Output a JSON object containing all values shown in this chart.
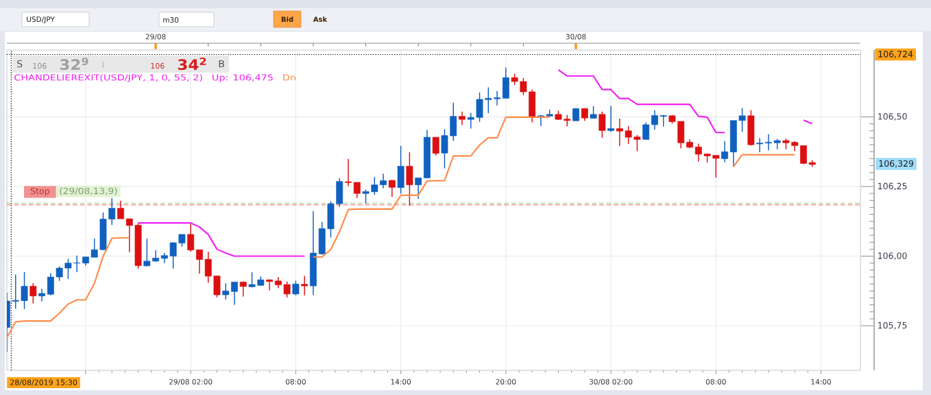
{
  "chart_data": {
    "type": "candlestick",
    "x": [
      "2019-08-28T15:30",
      "2019-08-28T16:00",
      "2019-08-28T16:30",
      "2019-08-28T17:00",
      "2019-08-28T17:30",
      "2019-08-28T18:00",
      "2019-08-28T18:30",
      "2019-08-28T19:00",
      "2019-08-28T19:30",
      "2019-08-28T20:00",
      "2019-08-28T20:30",
      "2019-08-28T21:00",
      "2019-08-28T21:30",
      "2019-08-28T22:00",
      "2019-08-28T22:30",
      "2019-08-28T23:00",
      "2019-08-28T23:30",
      "2019-08-29T00:00",
      "2019-08-29T00:30",
      "2019-08-29T01:00",
      "2019-08-29T01:30",
      "2019-08-29T02:00",
      "2019-08-29T02:30",
      "2019-08-29T03:00",
      "2019-08-29T03:30",
      "2019-08-29T04:00",
      "2019-08-29T04:30",
      "2019-08-29T05:00",
      "2019-08-29T05:30",
      "2019-08-29T06:00",
      "2019-08-29T06:30",
      "2019-08-29T07:00",
      "2019-08-29T07:30",
      "2019-08-29T08:00",
      "2019-08-29T08:30",
      "2019-08-29T09:00",
      "2019-08-29T09:30",
      "2019-08-29T10:00",
      "2019-08-29T10:30",
      "2019-08-29T11:00",
      "2019-08-29T11:30",
      "2019-08-29T12:00",
      "2019-08-29T12:30",
      "2019-08-29T13:00",
      "2019-08-29T13:30",
      "2019-08-29T14:00",
      "2019-08-29T14:30",
      "2019-08-29T15:00",
      "2019-08-29T15:30",
      "2019-08-29T16:00",
      "2019-08-29T16:30",
      "2019-08-29T17:00",
      "2019-08-29T17:30",
      "2019-08-29T18:00",
      "2019-08-29T18:30",
      "2019-08-29T19:00",
      "2019-08-29T19:30",
      "2019-08-29T20:00",
      "2019-08-29T20:30",
      "2019-08-29T21:00",
      "2019-08-29T21:30",
      "2019-08-29T22:00",
      "2019-08-29T22:30",
      "2019-08-29T23:00",
      "2019-08-29T23:30",
      "2019-08-30T00:00",
      "2019-08-30T00:30",
      "2019-08-30T01:00",
      "2019-08-30T01:30",
      "2019-08-30T02:00",
      "2019-08-30T02:30",
      "2019-08-30T03:00",
      "2019-08-30T03:30",
      "2019-08-30T04:00",
      "2019-08-30T04:30",
      "2019-08-30T05:00",
      "2019-08-30T05:30",
      "2019-08-30T06:00",
      "2019-08-30T06:30",
      "2019-08-30T07:00",
      "2019-08-30T07:30",
      "2019-08-30T08:00",
      "2019-08-30T08:30",
      "2019-08-30T09:00",
      "2019-08-30T09:30",
      "2019-08-30T10:00",
      "2019-08-30T10:30",
      "2019-08-30T11:00",
      "2019-08-30T11:30",
      "2019-08-30T12:00",
      "2019-08-30T12:30",
      "2019-08-30T13:00",
      "2019-08-30T13:30"
    ],
    "xlim": [
      "2019-08-28T15:30",
      "2019-08-30T16:15"
    ],
    "xticks": [
      {
        "value": "2019-08-28T20:00",
        "label": null
      },
      {
        "value": "2019-08-29T02:00",
        "label": "29/08 02:00"
      },
      {
        "value": "2019-08-29T08:00",
        "label": "08:00"
      },
      {
        "value": "2019-08-29T14:00",
        "label": "14:00"
      },
      {
        "value": "2019-08-29T20:00",
        "label": "20:00"
      },
      {
        "value": "2019-08-30T02:00",
        "label": "30/08 02:00"
      },
      {
        "value": "2019-08-30T08:00",
        "label": "08:00"
      },
      {
        "value": "2019-08-30T14:00",
        "label": "14:00"
      }
    ],
    "x2lim": [
      "2019-08-28T15:30",
      "2019-08-30T16:15"
    ],
    "x2ticks": [
      {
        "value": "2019-08-29T00:00",
        "label": "29/08"
      },
      {
        "value": "2019-08-30T00:00",
        "label": "30/08"
      }
    ],
    "ylim": [
      105.59,
      106.74
    ],
    "yticks": [
      {
        "value": 105.75,
        "label": "105,75"
      },
      {
        "value": 106.0,
        "label": "106,00"
      },
      {
        "value": 106.25,
        "label": "106,25"
      },
      {
        "value": 106.5,
        "label": "106,50"
      }
    ],
    "grid": true,
    "legend": "top left",
    "legend_title": "CHANDELIEREXIT(USD/JPY, 1, 0, 55, 2)",
    "series": [
      {
        "ohlc": [
          [
            105.744,
            105.869,
            105.656,
            105.839
          ],
          [
            105.838,
            105.934,
            105.811,
            105.841
          ],
          [
            105.84,
            105.943,
            105.81,
            105.892
          ],
          [
            105.892,
            105.903,
            105.83,
            105.857
          ],
          [
            105.857,
            105.883,
            105.838,
            105.866
          ],
          [
            105.863,
            105.939,
            105.859,
            105.925
          ],
          [
            105.925,
            105.963,
            105.911,
            105.957
          ],
          [
            105.957,
            105.99,
            105.918,
            105.975
          ],
          [
            105.975,
            106.002,
            105.943,
            105.976
          ],
          [
            105.975,
            105.997,
            105.966,
            105.997
          ],
          [
            105.996,
            106.063,
            105.996,
            106.023
          ],
          [
            106.023,
            106.157,
            106.023,
            106.133
          ],
          [
            106.133,
            106.209,
            106.112,
            106.172
          ],
          [
            106.172,
            106.199,
            106.134,
            106.134
          ],
          [
            106.134,
            106.134,
            106.014,
            106.11
          ],
          [
            106.111,
            106.119,
            105.955,
            105.966
          ],
          [
            105.965,
            106.063,
            105.963,
            105.982
          ],
          [
            105.982,
            106.021,
            105.98,
            105.993
          ],
          [
            105.992,
            106.012,
            105.975,
            106.002
          ],
          [
            106.0,
            106.05,
            105.955,
            106.048
          ],
          [
            106.047,
            106.078,
            106.034,
            106.078
          ],
          [
            106.078,
            106.116,
            106.016,
            106.022
          ],
          [
            106.023,
            106.023,
            105.937,
            105.988
          ],
          [
            105.989,
            106.016,
            105.904,
            105.928
          ],
          [
            105.929,
            105.929,
            105.852,
            105.861
          ],
          [
            105.861,
            105.902,
            105.844,
            105.875
          ],
          [
            105.873,
            105.907,
            105.825,
            105.907
          ],
          [
            105.907,
            105.909,
            105.855,
            105.891
          ],
          [
            105.89,
            105.942,
            105.888,
            105.898
          ],
          [
            105.895,
            105.927,
            105.893,
            105.915
          ],
          [
            105.915,
            105.916,
            105.877,
            105.909
          ],
          [
            105.911,
            105.925,
            105.885,
            105.897
          ],
          [
            105.898,
            105.909,
            105.852,
            105.864
          ],
          [
            105.864,
            105.912,
            105.859,
            105.9
          ],
          [
            105.899,
            105.929,
            105.859,
            105.893
          ],
          [
            105.893,
            106.162,
            105.86,
            106.011
          ],
          [
            106.008,
            106.123,
            106.005,
            106.099
          ],
          [
            106.098,
            106.197,
            106.067,
            106.188
          ],
          [
            106.188,
            106.28,
            106.177,
            106.268
          ],
          [
            106.267,
            106.349,
            106.252,
            106.264
          ],
          [
            106.265,
            106.265,
            106.209,
            106.225
          ],
          [
            106.225,
            106.239,
            106.189,
            106.232
          ],
          [
            106.231,
            106.284,
            106.22,
            106.256
          ],
          [
            106.256,
            106.296,
            106.244,
            106.271
          ],
          [
            106.272,
            106.274,
            106.213,
            106.247
          ],
          [
            106.246,
            106.396,
            106.224,
            106.323
          ],
          [
            106.323,
            106.373,
            106.181,
            106.256
          ],
          [
            106.256,
            106.281,
            106.205,
            106.281
          ],
          [
            106.281,
            106.453,
            106.281,
            106.427
          ],
          [
            106.427,
            106.427,
            106.361,
            106.369
          ],
          [
            106.37,
            106.456,
            106.315,
            106.433
          ],
          [
            106.432,
            106.551,
            106.414,
            106.502
          ],
          [
            106.502,
            106.519,
            106.471,
            106.491
          ],
          [
            106.491,
            106.514,
            106.458,
            106.498
          ],
          [
            106.498,
            106.588,
            106.482,
            106.563
          ],
          [
            106.562,
            106.606,
            106.513,
            106.567
          ],
          [
            106.565,
            106.593,
            106.541,
            106.569
          ],
          [
            106.567,
            106.677,
            106.567,
            106.641
          ],
          [
            106.641,
            106.655,
            106.615,
            106.627
          ],
          [
            106.627,
            106.64,
            106.578,
            106.59
          ],
          [
            106.59,
            106.598,
            106.481,
            106.5
          ],
          [
            106.502,
            106.507,
            106.467,
            106.504
          ],
          [
            106.503,
            106.526,
            106.502,
            106.509
          ],
          [
            106.509,
            106.522,
            106.489,
            106.491
          ],
          [
            106.492,
            106.507,
            106.466,
            106.487
          ],
          [
            106.486,
            106.531,
            106.486,
            106.53
          ],
          [
            106.53,
            106.531,
            106.486,
            106.496
          ],
          [
            106.495,
            106.539,
            106.495,
            106.509
          ],
          [
            106.509,
            106.519,
            106.425,
            106.451
          ],
          [
            106.451,
            106.539,
            106.446,
            106.458
          ],
          [
            106.458,
            106.494,
            106.396,
            106.449
          ],
          [
            106.45,
            106.467,
            106.403,
            106.427
          ],
          [
            106.428,
            106.435,
            106.377,
            106.419
          ],
          [
            106.419,
            106.48,
            106.419,
            106.472
          ],
          [
            106.472,
            106.524,
            106.454,
            106.505
          ],
          [
            106.502,
            106.507,
            106.465,
            106.505
          ],
          [
            106.504,
            106.507,
            106.476,
            106.483
          ],
          [
            106.484,
            106.484,
            106.387,
            106.407
          ],
          [
            106.409,
            106.419,
            106.387,
            106.391
          ],
          [
            106.392,
            106.404,
            106.34,
            106.366
          ],
          [
            106.367,
            106.367,
            106.336,
            106.36
          ],
          [
            106.362,
            106.362,
            106.282,
            106.351
          ],
          [
            106.35,
            106.413,
            106.337,
            106.375
          ],
          [
            106.374,
            106.487,
            106.321,
            106.487
          ],
          [
            106.487,
            106.532,
            106.447,
            106.504
          ],
          [
            106.504,
            106.524,
            106.397,
            106.4
          ],
          [
            106.403,
            106.424,
            106.373,
            106.406
          ],
          [
            106.406,
            106.438,
            106.38,
            106.409
          ],
          [
            106.407,
            106.421,
            106.384,
            106.415
          ],
          [
            106.415,
            106.422,
            106.384,
            106.407
          ],
          [
            106.409,
            106.413,
            106.377,
            106.397
          ],
          [
            106.397,
            106.397,
            106.33,
            106.333
          ],
          [
            106.336,
            106.344,
            106.321,
            106.329
          ]
        ],
        "colors": [
          "#1060c0",
          "#1060c0",
          "#1060c0",
          "#dc1010",
          "#1060c0",
          "#1060c0",
          "#1060c0",
          "#1060c0",
          "#1060c0",
          "#1060c0",
          "#1060c0",
          "#1060c0",
          "#1060c0",
          "#dc1010",
          "#dc1010",
          "#dc1010",
          "#1060c0",
          "#1060c0",
          "#1060c0",
          "#1060c0",
          "#1060c0",
          "#dc1010",
          "#dc1010",
          "#dc1010",
          "#dc1010",
          "#1060c0",
          "#1060c0",
          "#dc1010",
          "#1060c0",
          "#1060c0",
          "#dc1010",
          "#dc1010",
          "#dc1010",
          "#1060c0",
          "#dc1010",
          "#1060c0",
          "#1060c0",
          "#1060c0",
          "#1060c0",
          "#dc1010",
          "#dc1010",
          "#1060c0",
          "#1060c0",
          "#1060c0",
          "#dc1010",
          "#1060c0",
          "#dc1010",
          "#1060c0",
          "#1060c0",
          "#dc1010",
          "#1060c0",
          "#1060c0",
          "#dc1010",
          "#1060c0",
          "#1060c0",
          "#1060c0",
          "#1060c0",
          "#1060c0",
          "#dc1010",
          "#dc1010",
          "#dc1010",
          "#1060c0",
          "#1060c0",
          "#dc1010",
          "#dc1010",
          "#1060c0",
          "#dc1010",
          "#1060c0",
          "#dc1010",
          "#1060c0",
          "#dc1010",
          "#dc1010",
          "#dc1010",
          "#1060c0",
          "#1060c0",
          "#1060c0",
          "#dc1010",
          "#dc1010",
          "#dc1010",
          "#dc1010",
          "#dc1010",
          "#dc1010",
          "#1060c0",
          "#1060c0",
          "#1060c0",
          "#dc1010",
          "#1060c0",
          "#1060c0",
          "#1060c0",
          "#dc1010",
          "#dc1010",
          "#dc1010",
          "#dc1010"
        ]
      },
      {
        "type": "line",
        "name": "Up: 106,475",
        "color": "#f020f0",
        "values": [
          null,
          null,
          null,
          null,
          null,
          null,
          null,
          null,
          null,
          null,
          null,
          null,
          null,
          null,
          null,
          106.119,
          106.119,
          106.119,
          106.119,
          106.119,
          106.119,
          106.119,
          106.105,
          106.078,
          106.025,
          106.011,
          106.0,
          106.0,
          106.0,
          106.0,
          106.0,
          106.0,
          106.0,
          106.0,
          106.0,
          null,
          null,
          null,
          null,
          null,
          null,
          null,
          null,
          null,
          null,
          null,
          null,
          null,
          null,
          null,
          null,
          null,
          null,
          null,
          null,
          null,
          null,
          null,
          null,
          null,
          null,
          null,
          null,
          106.669,
          106.647,
          106.647,
          106.647,
          106.647,
          106.598,
          106.598,
          106.566,
          106.566,
          106.545,
          106.545,
          106.545,
          106.545,
          106.545,
          106.545,
          106.545,
          106.502,
          106.499,
          106.444,
          106.444,
          null,
          null,
          null,
          null,
          null,
          null,
          null,
          null,
          106.488,
          106.475
        ]
      },
      {
        "type": "line",
        "name": "Dn",
        "color": "#ff8a47",
        "values": [
          105.707,
          105.764,
          105.767,
          105.767,
          105.767,
          105.767,
          105.795,
          105.828,
          105.843,
          105.843,
          105.902,
          106.0,
          106.064,
          106.066,
          106.066,
          null,
          null,
          null,
          null,
          null,
          null,
          null,
          null,
          null,
          null,
          null,
          null,
          null,
          null,
          null,
          null,
          null,
          null,
          null,
          null,
          105.997,
          105.997,
          106.024,
          106.088,
          106.167,
          106.169,
          106.169,
          106.169,
          106.169,
          106.169,
          106.218,
          106.219,
          106.219,
          106.27,
          106.271,
          106.271,
          106.36,
          106.36,
          106.36,
          106.399,
          106.425,
          106.425,
          106.499,
          106.499,
          106.499,
          106.499,
          106.499,
          106.499,
          null,
          null,
          null,
          null,
          null,
          null,
          null,
          null,
          null,
          null,
          null,
          null,
          null,
          null,
          null,
          null,
          null,
          null,
          null,
          null,
          106.321,
          106.364,
          106.364,
          106.364,
          106.364,
          106.364,
          106.364,
          106.364,
          null,
          null
        ]
      }
    ],
    "ref_lines": [
      {
        "axis": "y",
        "value": 106.724,
        "label": "106,724",
        "color": "#000000",
        "line_style": "dotted"
      },
      {
        "axis": "y",
        "value": 106.19,
        "color": "#a9d18e",
        "line_style": "dashed"
      },
      {
        "axis": "y",
        "value": 106.184,
        "label": "Stop",
        "color": "#ff6b6b",
        "line_style": "dashed"
      },
      {
        "axis": "x",
        "value": "2019-08-28T15:45",
        "color": "#000000",
        "line_style": "dotted"
      }
    ],
    "annotations": [
      "S",
      "106",
      "32$^{9}$",
      "1",
      "106",
      "34$^{2}$",
      "B",
      "(29/08,13,9)",
      "28/08/2019 15:30",
      "106,329",
      "USD/JPY",
      "m30",
      "Bid",
      "Ask"
    ]
  }
}
